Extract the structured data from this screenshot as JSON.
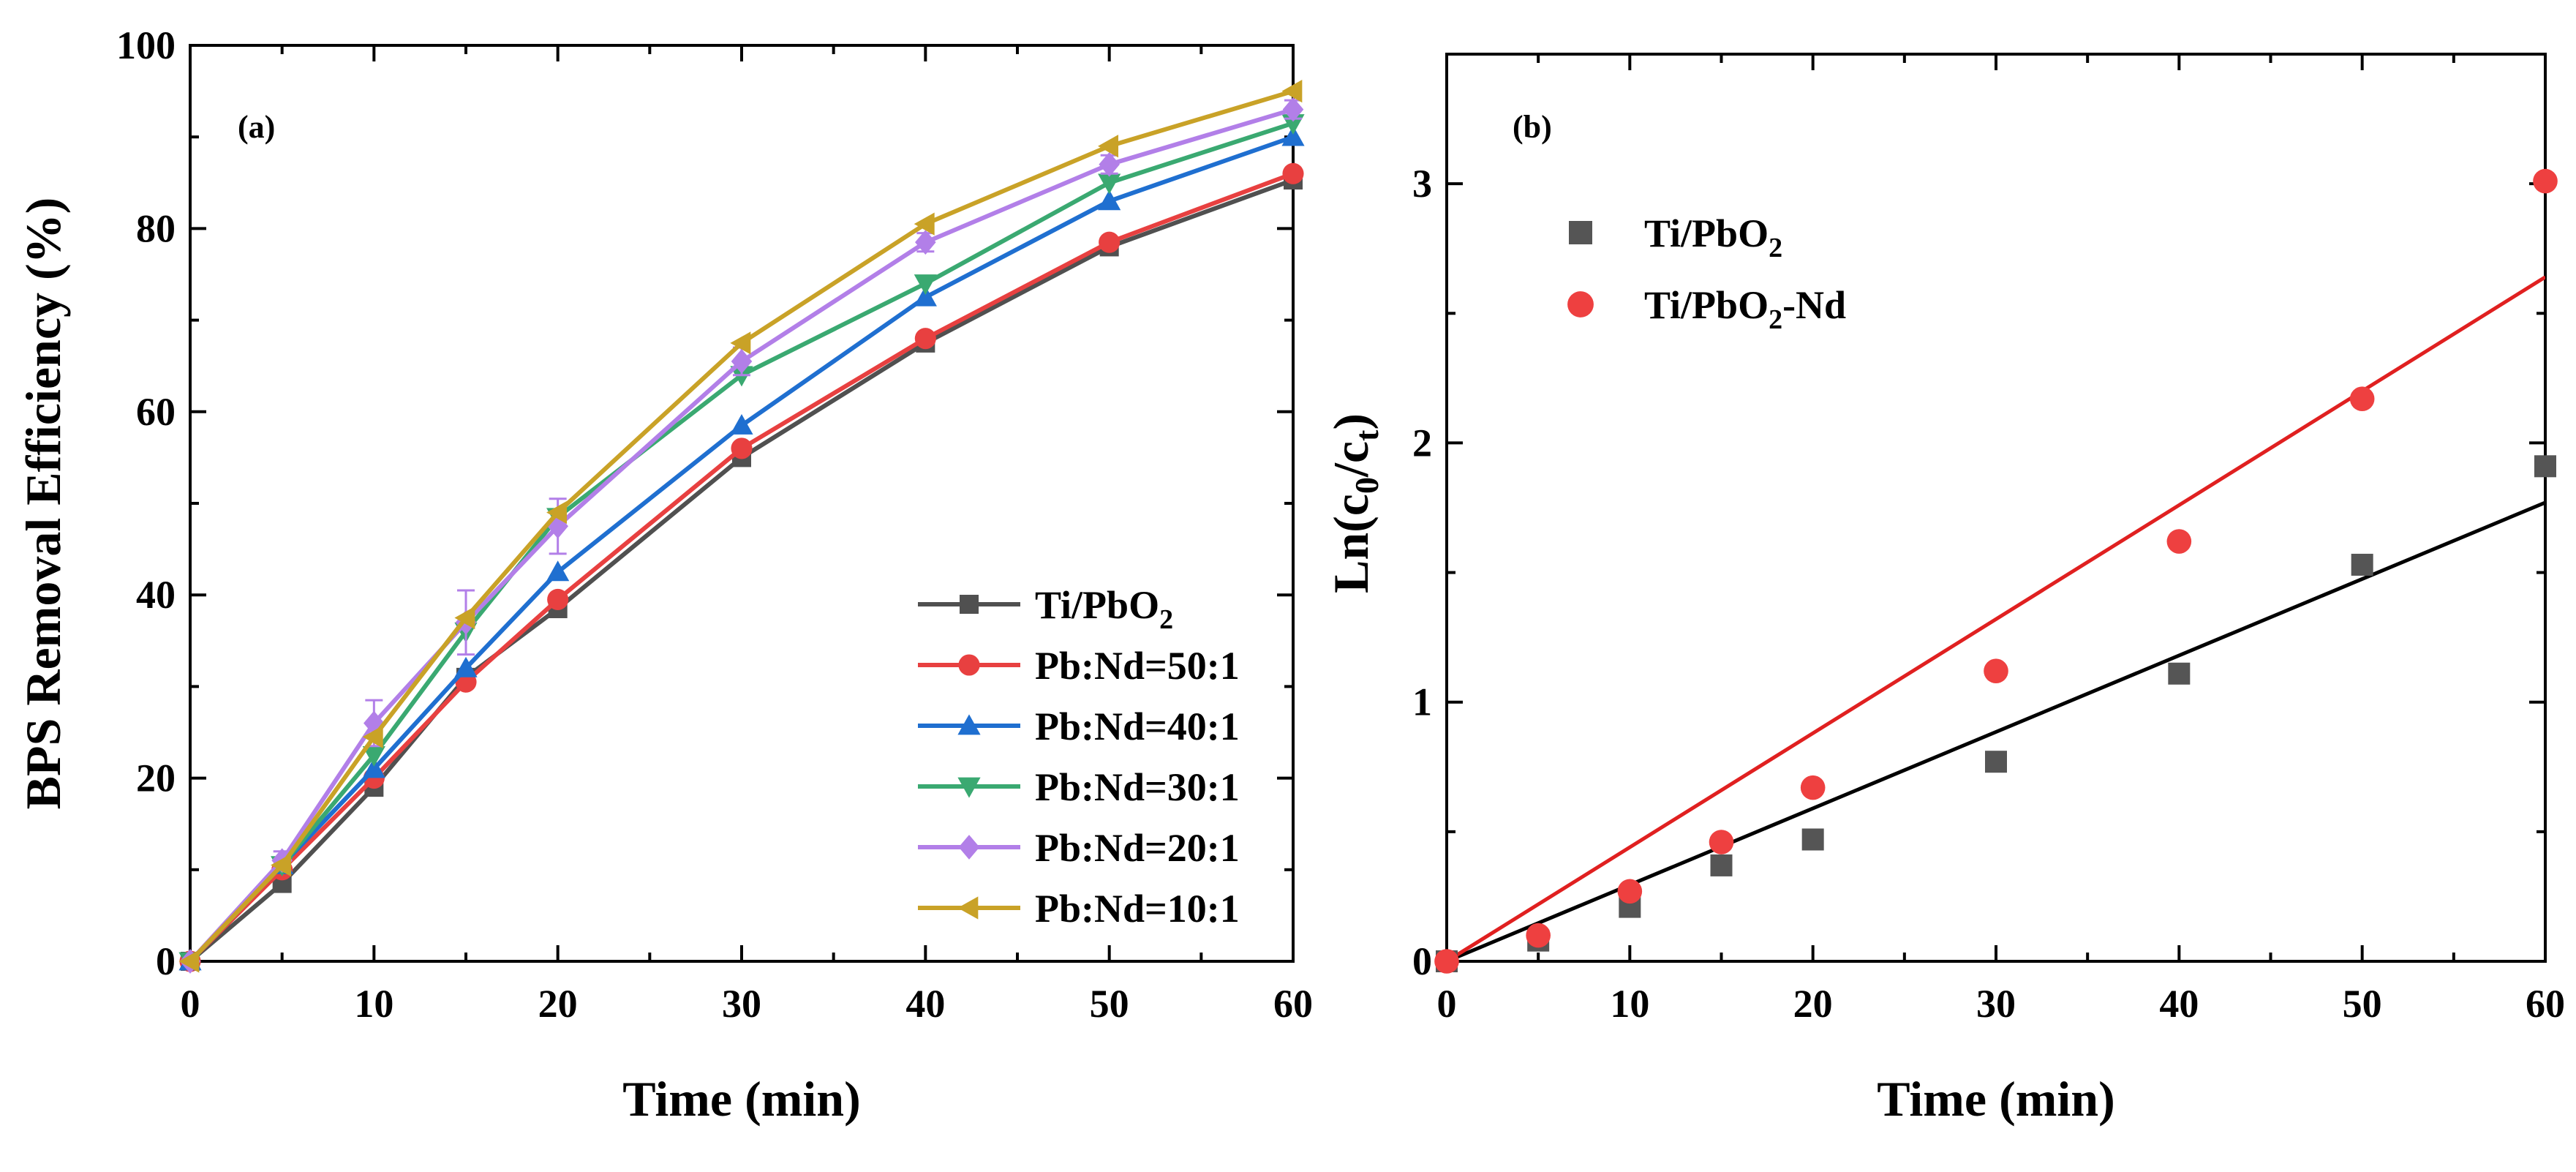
{
  "chart_data": [
    {
      "type": "line",
      "panel_label": "(a)",
      "xlabel": "Time  (min)",
      "ylabel": "BPS Removal Efficiency (%)",
      "xlim": [
        0,
        60
      ],
      "ylim": [
        0,
        100
      ],
      "x_ticks": [
        "0",
        "10",
        "20",
        "30",
        "40",
        "50",
        "60"
      ],
      "y_ticks": [
        "0",
        "20",
        "40",
        "60",
        "80",
        "100"
      ],
      "grid": false,
      "legend_position": "bottom-right",
      "x": [
        0,
        5,
        10,
        15,
        20,
        30,
        40,
        50,
        60
      ],
      "series": [
        {
          "name": "Ti/PbO2",
          "marker": "square",
          "color": "#505050",
          "values": [
            0,
            8.5,
            19,
            31,
            38.5,
            55,
            67.5,
            78,
            85.3
          ]
        },
        {
          "name": "Pb:Nd=50:1",
          "marker": "circle",
          "color": "#e84040",
          "values": [
            0,
            10,
            20,
            30.5,
            39.5,
            56,
            68,
            78.5,
            86
          ]
        },
        {
          "name": "Pb:Nd=40:1",
          "marker": "triangle-up",
          "color": "#1f6fd0",
          "values": [
            0,
            10.5,
            21,
            32,
            42.5,
            58.5,
            72.5,
            83,
            90
          ]
        },
        {
          "name": "Pb:Nd=30:1",
          "marker": "triangle-down",
          "color": "#3aa971",
          "values": [
            0,
            10.5,
            22.5,
            36,
            48.5,
            64,
            74,
            85,
            91.5
          ]
        },
        {
          "name": "Pb:Nd=20:1",
          "marker": "diamond",
          "color": "#b27fe8",
          "values": [
            0,
            11,
            26,
            37,
            47.5,
            65.5,
            78.5,
            87,
            93
          ]
        },
        {
          "name": "Pb:Nd=10:1",
          "marker": "triangle-left",
          "color": "#c9a227",
          "values": [
            0,
            10.5,
            24.5,
            37.5,
            49,
            67.5,
            80.5,
            89,
            95
          ]
        }
      ],
      "error_bars": {
        "Pb:Nd=20:1": [
          0,
          1,
          2.5,
          3.5,
          3,
          1.5,
          1,
          1,
          1
        ]
      }
    },
    {
      "type": "scatter",
      "panel_label": "(b)",
      "xlabel": "Time  (min)",
      "ylabel": "Ln(c0/ct)",
      "ylabel_parts": {
        "a": "Ln(c",
        "b": "0",
        "c": "/c",
        "d": "t",
        "e": ")"
      },
      "xlim": [
        0,
        60
      ],
      "ylim": [
        0,
        3.5
      ],
      "x_ticks": [
        "0",
        "10",
        "20",
        "30",
        "40",
        "50",
        "60"
      ],
      "y_ticks": [
        "0",
        "1",
        "2",
        "3"
      ],
      "grid": false,
      "legend_position": "top-left",
      "x": [
        0,
        5,
        10,
        15,
        20,
        30,
        40,
        50,
        60
      ],
      "series": [
        {
          "name": "Ti/PbO2",
          "legend_parts": {
            "a": "Ti/PbO",
            "b": "2",
            "c": ""
          },
          "marker": "square",
          "color": "#555555",
          "values": [
            0,
            0.08,
            0.21,
            0.37,
            0.47,
            0.77,
            1.11,
            1.53,
            1.91
          ],
          "fit_line": {
            "color": "#000000",
            "x": [
              0,
              60
            ],
            "y": [
              0,
              1.77
            ]
          }
        },
        {
          "name": "Ti/PbO2-Nd",
          "legend_parts": {
            "a": "Ti/PbO",
            "b": "2",
            "c": "-Nd"
          },
          "marker": "circle",
          "color": "#ee4040",
          "values": [
            0,
            0.1,
            0.27,
            0.46,
            0.67,
            1.12,
            1.62,
            2.17,
            3.01
          ],
          "fit_line": {
            "color": "#e02020",
            "x": [
              0,
              60
            ],
            "y": [
              0,
              2.64
            ]
          }
        }
      ]
    }
  ]
}
